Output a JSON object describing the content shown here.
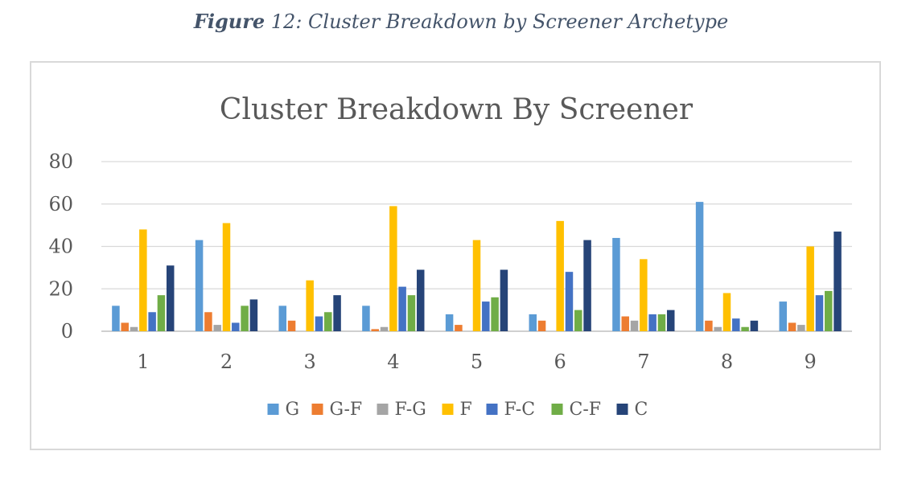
{
  "figure": {
    "caption_label": "Figure",
    "caption_text": " 12: Cluster Breakdown by Screener Archetype"
  },
  "chart_data": {
    "type": "bar",
    "title": "Cluster Breakdown By Screener",
    "xlabel": "",
    "ylabel": "",
    "ylim": [
      0,
      80
    ],
    "yticks": [
      0,
      20,
      40,
      60,
      80
    ],
    "grid": true,
    "legend_position": "bottom",
    "categories": [
      "1",
      "2",
      "3",
      "4",
      "5",
      "6",
      "7",
      "8",
      "9"
    ],
    "series": [
      {
        "name": "G",
        "color": "#5b9bd5",
        "values": [
          12,
          43,
          12,
          12,
          8,
          8,
          44,
          61,
          14
        ]
      },
      {
        "name": "G-F",
        "color": "#ed7d31",
        "values": [
          4,
          9,
          5,
          1,
          3,
          5,
          7,
          5,
          4
        ]
      },
      {
        "name": "F-G",
        "color": "#a5a5a5",
        "values": [
          2,
          3,
          0,
          2,
          0,
          0,
          5,
          2,
          3
        ]
      },
      {
        "name": "F",
        "color": "#ffc000",
        "values": [
          48,
          51,
          24,
          59,
          43,
          52,
          34,
          18,
          40
        ]
      },
      {
        "name": "F-C",
        "color": "#4472c4",
        "values": [
          9,
          4,
          7,
          21,
          14,
          28,
          8,
          6,
          17
        ]
      },
      {
        "name": "C-F",
        "color": "#70ad47",
        "values": [
          17,
          12,
          9,
          17,
          16,
          10,
          8,
          2,
          19
        ]
      },
      {
        "name": "C",
        "color": "#264478",
        "values": [
          31,
          15,
          17,
          29,
          29,
          43,
          10,
          5,
          47
        ]
      }
    ]
  }
}
